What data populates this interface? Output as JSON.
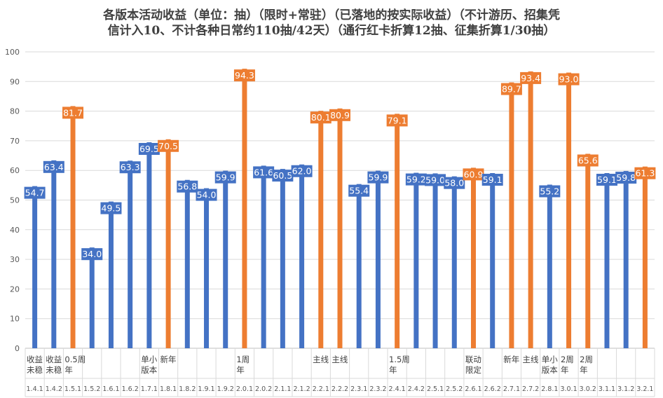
{
  "chart_data": {
    "type": "bar",
    "title_lines": [
      "各版本活动收益（单位：抽）（限时+常驻）（已落地的按实际收益）（不计游历、招集凭",
      "信计入10、不计各种日常约110抽/42天）（通行红卡折算12抽、征集折算1/30抽）"
    ],
    "ylim": [
      0,
      100
    ],
    "yticks": [
      0,
      10,
      20,
      30,
      40,
      50,
      60,
      70,
      80,
      90,
      100
    ],
    "grid": true,
    "legend": "none",
    "colors": {
      "regular": "#4472C4",
      "highlight": "#ED7D31"
    },
    "categories": [
      {
        "version": "1.4.1",
        "note": [
          "收益",
          "未稳"
        ],
        "value": 54.7,
        "highlight": false
      },
      {
        "version": "1.4.2",
        "note": [
          "收益",
          "未稳"
        ],
        "value": 63.4,
        "highlight": false
      },
      {
        "version": "1.5.1",
        "note": [
          "0.5周",
          "年"
        ],
        "value": 81.7,
        "highlight": true
      },
      {
        "version": "1.5.2",
        "note": [],
        "value": 34.0,
        "highlight": false
      },
      {
        "version": "1.6.1",
        "note": [],
        "value": 49.5,
        "highlight": false
      },
      {
        "version": "1.6.2",
        "note": [],
        "value": 63.3,
        "highlight": false
      },
      {
        "version": "1.7.1",
        "note": [
          "单小",
          "版本"
        ],
        "value": 69.5,
        "highlight": false
      },
      {
        "version": "1.8.1",
        "note": [
          "新年"
        ],
        "value": 70.5,
        "highlight": true
      },
      {
        "version": "1.8.2",
        "note": [],
        "value": 56.8,
        "highlight": false
      },
      {
        "version": "1.9.1",
        "note": [],
        "value": 54.0,
        "highlight": false
      },
      {
        "version": "1.9.2",
        "note": [],
        "value": 59.9,
        "highlight": false
      },
      {
        "version": "2.0.1",
        "note": [
          "1周",
          "年"
        ],
        "value": 94.3,
        "highlight": true
      },
      {
        "version": "2.0.2",
        "note": [],
        "value": 61.6,
        "highlight": false
      },
      {
        "version": "2.1.1",
        "note": [],
        "value": 60.5,
        "highlight": false
      },
      {
        "version": "2.1.2",
        "note": [],
        "value": 62.0,
        "highlight": false
      },
      {
        "version": "2.2.1",
        "note": [
          "主线"
        ],
        "value": 80.1,
        "highlight": true
      },
      {
        "version": "2.2.2",
        "note": [
          "主线"
        ],
        "value": 80.9,
        "highlight": true
      },
      {
        "version": "2.3.1",
        "note": [],
        "value": 55.4,
        "highlight": false
      },
      {
        "version": "2.3.2",
        "note": [],
        "value": 59.9,
        "highlight": false
      },
      {
        "version": "2.4.1",
        "note": [
          "1.5周",
          "年"
        ],
        "value": 79.1,
        "highlight": true
      },
      {
        "version": "2.4.2",
        "note": [],
        "value": 59.2,
        "highlight": false
      },
      {
        "version": "2.5.1",
        "note": [],
        "value": 59.0,
        "highlight": false
      },
      {
        "version": "2.5.2",
        "note": [],
        "value": 58.0,
        "highlight": false
      },
      {
        "version": "2.6.1",
        "note": [
          "联动",
          "限定"
        ],
        "value": 60.9,
        "highlight": true
      },
      {
        "version": "2.6.2",
        "note": [],
        "value": 59.1,
        "highlight": false
      },
      {
        "version": "2.7.1",
        "note": [
          "新年"
        ],
        "value": 89.7,
        "highlight": true
      },
      {
        "version": "2.7.2",
        "note": [
          "主线"
        ],
        "value": 93.4,
        "highlight": true
      },
      {
        "version": "2.8.1",
        "note": [
          "单小",
          "版本"
        ],
        "value": 55.2,
        "highlight": false
      },
      {
        "version": "3.0.1",
        "note": [
          "2周",
          "年"
        ],
        "value": 93.0,
        "highlight": true
      },
      {
        "version": "3.0.2",
        "note": [
          "2周",
          "年"
        ],
        "value": 65.6,
        "highlight": true
      },
      {
        "version": "3.1.1",
        "note": [],
        "value": 59.1,
        "highlight": false
      },
      {
        "version": "3.1.2",
        "note": [],
        "value": 59.8,
        "highlight": false
      },
      {
        "version": "3.2.1",
        "note": [],
        "value": 61.3,
        "highlight": true
      }
    ]
  }
}
